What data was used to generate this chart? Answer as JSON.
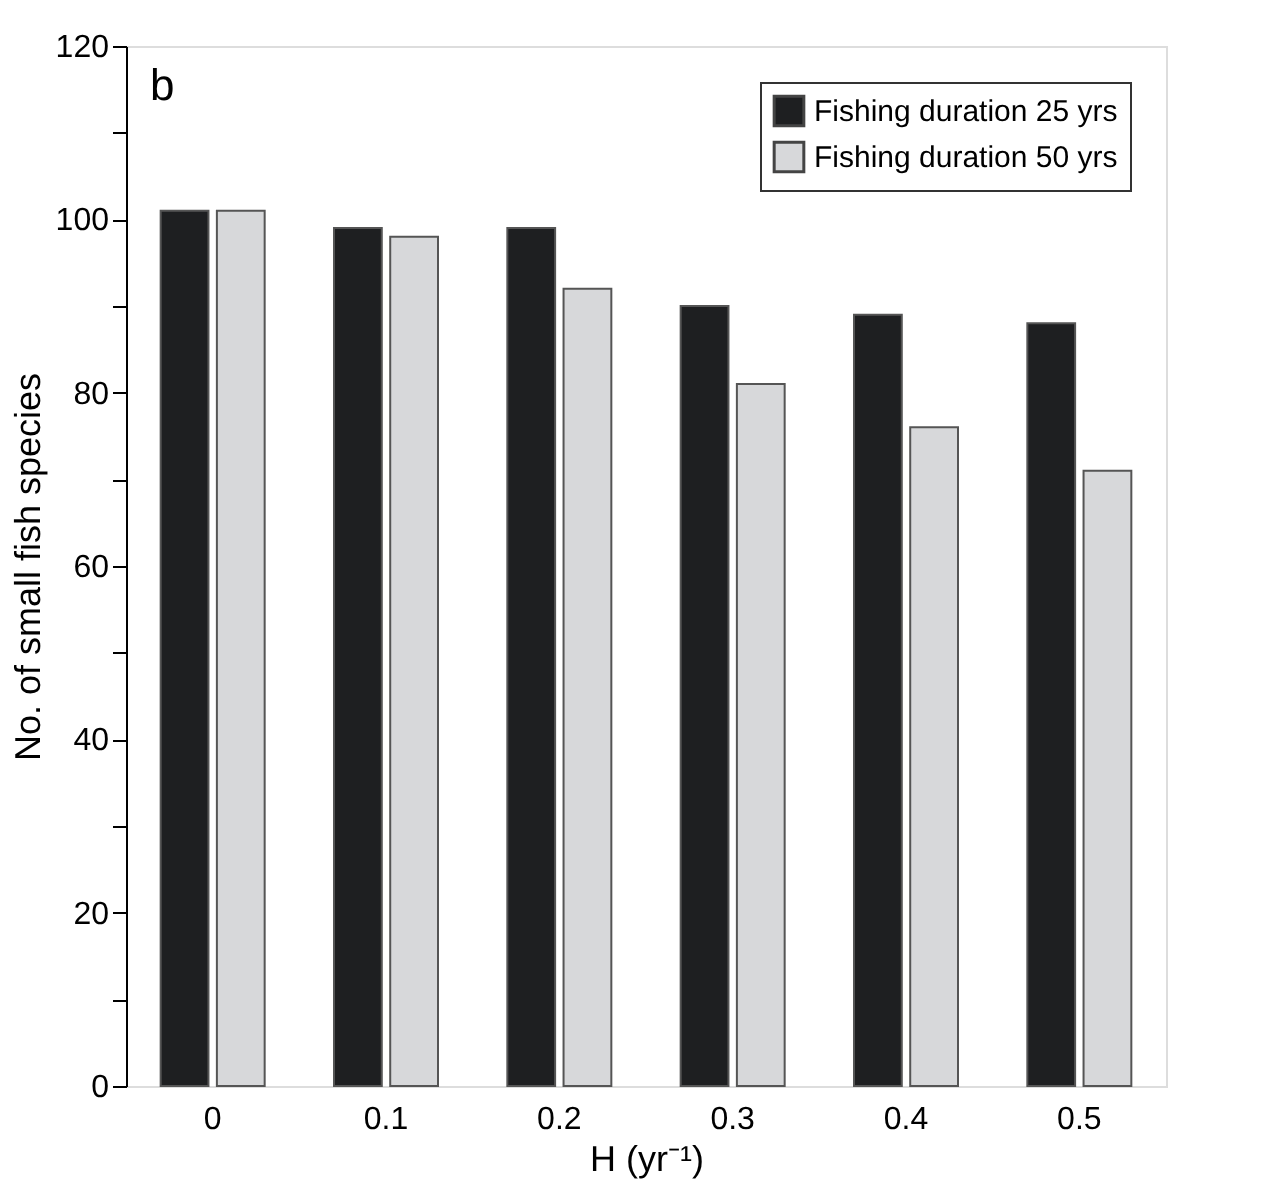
{
  "chart_data": {
    "type": "bar",
    "categories": [
      "0",
      "0.1",
      "0.2",
      "0.3",
      "0.4",
      "0.5"
    ],
    "series": [
      {
        "name": "Fishing duration 25 yrs",
        "color": "#1e1f21",
        "values": [
          101,
          99,
          99,
          90,
          89,
          88
        ]
      },
      {
        "name": "Fishing duration 50 yrs",
        "color": "#d7d8da",
        "values": [
          101,
          98,
          92,
          81,
          76,
          71
        ]
      }
    ],
    "xlabel": "H (yr⁻¹)",
    "ylabel": "No. of small fish species",
    "annotations": [
      "b"
    ],
    "ylim": [
      0,
      120
    ],
    "yticks": [
      0,
      {
        "value": 10,
        "label": null
      },
      20,
      {
        "value": 30,
        "label": null
      },
      40,
      {
        "value": 50,
        "label": null
      },
      60,
      {
        "value": 70,
        "label": null
      },
      80,
      {
        "value": 90,
        "label": null
      },
      100,
      {
        "value": 110,
        "label": null
      },
      120
    ],
    "grid": false,
    "legend": "top right"
  }
}
